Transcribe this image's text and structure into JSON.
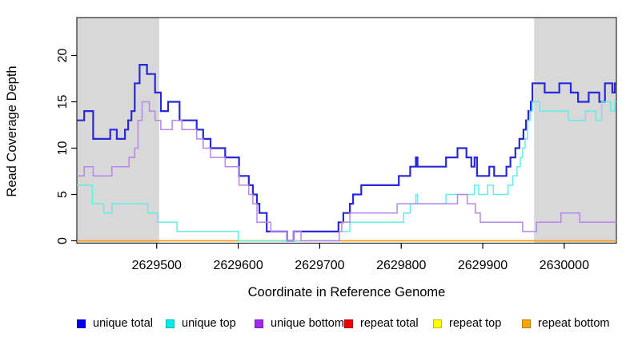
{
  "chart_data": {
    "type": "line",
    "subtype": "step-after-coverage-plot",
    "title": "",
    "xlabel": "Coordinate in Reference Genome",
    "ylabel": "Read Coverage Depth",
    "xlim": [
      2629402,
      2630064
    ],
    "ylim": [
      0,
      24.1
    ],
    "x_ticks": [
      2629500,
      2629600,
      2629700,
      2629800,
      2629900,
      2630000
    ],
    "y_ticks": [
      0,
      5,
      10,
      15,
      20
    ],
    "grid": "off",
    "legend_position": "bottom",
    "shade_color": "#d8d8d8",
    "shaded_regions": [
      [
        2629402,
        2629503
      ],
      [
        2629963,
        2630064
      ]
    ],
    "series": [
      {
        "name": "repeat total",
        "legend_color": "#ee0000",
        "line_color": "#dd3333",
        "line_width": 1.3,
        "points": [
          [
            2629402,
            0
          ],
          [
            2630064,
            0
          ]
        ]
      },
      {
        "name": "repeat top",
        "legend_color": "#ffff00",
        "line_color": "#eded4e",
        "line_width": 1.3,
        "points": [
          [
            2629402,
            0
          ],
          [
            2630064,
            0
          ]
        ]
      },
      {
        "name": "repeat bottom",
        "legend_color": "#ffa500",
        "line_color": "#ff9d14",
        "line_width": 1.6,
        "points": [
          [
            2629402,
            0
          ],
          [
            2630064,
            0
          ]
        ]
      },
      {
        "name": "unique total",
        "legend_color": "#0000f0",
        "line_color": "#2828d8",
        "line_width": 2.2,
        "points": [
          [
            2629402,
            13
          ],
          [
            2629411,
            14
          ],
          [
            2629422,
            11
          ],
          [
            2629443,
            12
          ],
          [
            2629451,
            11
          ],
          [
            2629461,
            12
          ],
          [
            2629465,
            13
          ],
          [
            2629469,
            14
          ],
          [
            2629473,
            17
          ],
          [
            2629479,
            19
          ],
          [
            2629488,
            18
          ],
          [
            2629498,
            16
          ],
          [
            2629505,
            14
          ],
          [
            2629514,
            15
          ],
          [
            2629528,
            13
          ],
          [
            2629549,
            12
          ],
          [
            2629557,
            11
          ],
          [
            2629566,
            10
          ],
          [
            2629584,
            9
          ],
          [
            2629601,
            7
          ],
          [
            2629613,
            6
          ],
          [
            2629618,
            5
          ],
          [
            2629623,
            4
          ],
          [
            2629626,
            3
          ],
          [
            2629635,
            1
          ],
          [
            2629660,
            0
          ],
          [
            2629668,
            1
          ],
          [
            2629723,
            2
          ],
          [
            2629729,
            3
          ],
          [
            2629737,
            4
          ],
          [
            2629741,
            5
          ],
          [
            2629751,
            6
          ],
          [
            2629797,
            7
          ],
          [
            2629811,
            8
          ],
          [
            2629818,
            9
          ],
          [
            2629820,
            8
          ],
          [
            2629855,
            9
          ],
          [
            2629869,
            10
          ],
          [
            2629880,
            9
          ],
          [
            2629886,
            8
          ],
          [
            2629890,
            9
          ],
          [
            2629893,
            7
          ],
          [
            2629908,
            8
          ],
          [
            2629914,
            7
          ],
          [
            2629929,
            8
          ],
          [
            2629934,
            9
          ],
          [
            2629940,
            10
          ],
          [
            2629945,
            11
          ],
          [
            2629950,
            12
          ],
          [
            2629953,
            13
          ],
          [
            2629956,
            14
          ],
          [
            2629959,
            15
          ],
          [
            2629961,
            17
          ],
          [
            2629976,
            16
          ],
          [
            2629994,
            17
          ],
          [
            2630008,
            16
          ],
          [
            2630017,
            15
          ],
          [
            2630030,
            16
          ],
          [
            2630043,
            15
          ],
          [
            2630050,
            17
          ],
          [
            2630059,
            16
          ],
          [
            2630062,
            17
          ],
          [
            2630064,
            17
          ]
        ]
      },
      {
        "name": "unique top",
        "legend_color": "#00eeee",
        "line_color": "#63ece8",
        "line_width": 1.5,
        "points": [
          [
            2629402,
            6
          ],
          [
            2629421,
            4
          ],
          [
            2629435,
            3
          ],
          [
            2629445,
            4
          ],
          [
            2629489,
            3
          ],
          [
            2629501,
            2
          ],
          [
            2629525,
            1
          ],
          [
            2629600,
            0
          ],
          [
            2629724,
            1
          ],
          [
            2629737,
            2
          ],
          [
            2629803,
            3
          ],
          [
            2629811,
            4
          ],
          [
            2629818,
            5
          ],
          [
            2629820,
            4
          ],
          [
            2629855,
            5
          ],
          [
            2629890,
            6
          ],
          [
            2629895,
            5
          ],
          [
            2629906,
            6
          ],
          [
            2629913,
            5
          ],
          [
            2629931,
            6
          ],
          [
            2629937,
            7
          ],
          [
            2629942,
            8
          ],
          [
            2629946,
            9
          ],
          [
            2629949,
            10
          ],
          [
            2629952,
            11
          ],
          [
            2629955,
            13
          ],
          [
            2629958,
            14
          ],
          [
            2629961,
            15
          ],
          [
            2629970,
            14
          ],
          [
            2630005,
            13
          ],
          [
            2630026,
            14
          ],
          [
            2630039,
            13
          ],
          [
            2630046,
            15
          ],
          [
            2630057,
            14
          ],
          [
            2630062,
            15
          ],
          [
            2630064,
            15
          ]
        ]
      },
      {
        "name": "unique bottom",
        "legend_color": "#a228f0",
        "line_color": "#b787e8",
        "line_width": 1.5,
        "points": [
          [
            2629402,
            7
          ],
          [
            2629411,
            8
          ],
          [
            2629422,
            7
          ],
          [
            2629445,
            8
          ],
          [
            2629466,
            9
          ],
          [
            2629473,
            10
          ],
          [
            2629477,
            13
          ],
          [
            2629482,
            15
          ],
          [
            2629491,
            14
          ],
          [
            2629498,
            13
          ],
          [
            2629505,
            12
          ],
          [
            2629519,
            13
          ],
          [
            2629531,
            12
          ],
          [
            2629549,
            11
          ],
          [
            2629557,
            10
          ],
          [
            2629566,
            9
          ],
          [
            2629584,
            8
          ],
          [
            2629601,
            6
          ],
          [
            2629613,
            5
          ],
          [
            2629618,
            4
          ],
          [
            2629623,
            2
          ],
          [
            2629640,
            1
          ],
          [
            2629660,
            0
          ],
          [
            2629668,
            1
          ],
          [
            2629677,
            0
          ],
          [
            2629724,
            1
          ],
          [
            2629727,
            2
          ],
          [
            2629737,
            3
          ],
          [
            2629795,
            4
          ],
          [
            2629869,
            5
          ],
          [
            2629881,
            4
          ],
          [
            2629891,
            3
          ],
          [
            2629897,
            2
          ],
          [
            2629949,
            1
          ],
          [
            2629966,
            2
          ],
          [
            2629996,
            3
          ],
          [
            2630019,
            2
          ],
          [
            2630064,
            2
          ]
        ]
      }
    ],
    "legend": [
      {
        "label": "unique total",
        "color": "#0000f0"
      },
      {
        "label": "unique top",
        "color": "#00eeee"
      },
      {
        "label": "unique bottom",
        "color": "#a228f0"
      },
      {
        "label": "repeat total",
        "color": "#ee0000"
      },
      {
        "label": "repeat top",
        "color": "#ffff00"
      },
      {
        "label": "repeat bottom",
        "color": "#ffa500"
      }
    ]
  }
}
